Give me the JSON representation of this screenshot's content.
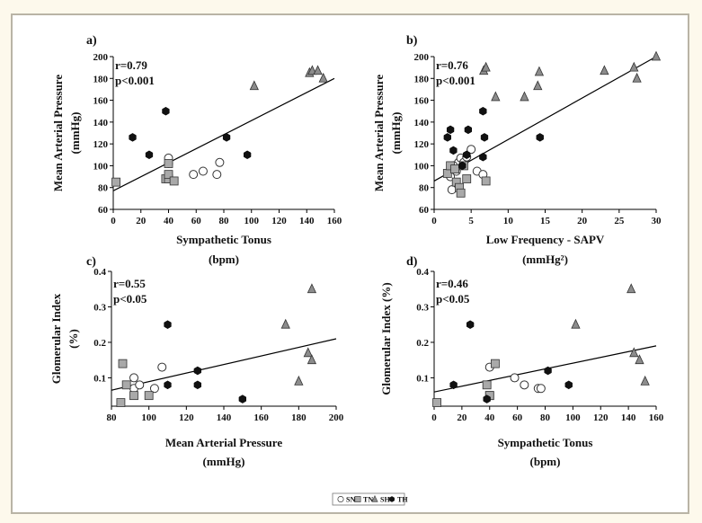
{
  "chart_data": [
    {
      "type": "scatter",
      "panel": "a)",
      "stats": [
        "r=0.79",
        "p<0.001"
      ],
      "xlabel": "Sympathetic Tonus",
      "xunit": "(bpm)",
      "ylabel": "Mean Arterial Pressure",
      "yunit": "(mmHg)",
      "xlim": [
        0,
        160
      ],
      "ylim": [
        60,
        200
      ],
      "xticks": [
        "0",
        "20",
        "40",
        "60",
        "80",
        "100",
        "120",
        "140",
        "160"
      ],
      "yticks": [
        "60",
        "80",
        "100",
        "120",
        "140",
        "160",
        "180",
        "200"
      ],
      "series": [
        {
          "name": "SN",
          "marker": "circle",
          "x": [
            40,
            58,
            65,
            75,
            77,
            40
          ],
          "y": [
            102,
            92,
            95,
            92,
            103,
            107
          ]
        },
        {
          "name": "TN",
          "marker": "square",
          "x": [
            2,
            38,
            40,
            40,
            44,
            40
          ],
          "y": [
            85,
            88,
            88,
            92,
            86,
            102
          ]
        },
        {
          "name": "SH",
          "marker": "triangle",
          "x": [
            102,
            142,
            144,
            148,
            152
          ],
          "y": [
            173,
            185,
            187,
            187,
            180
          ]
        },
        {
          "name": "TH",
          "marker": "hexagon",
          "x": [
            14,
            26,
            38,
            82,
            97
          ],
          "y": [
            126,
            110,
            150,
            126,
            110
          ]
        }
      ],
      "fit_line": {
        "x": [
          0,
          160
        ],
        "y": [
          77,
          180
        ]
      }
    },
    {
      "type": "scatter",
      "panel": "b)",
      "stats": [
        "r=0.76",
        "p<0.001"
      ],
      "xlabel": "Low Frequency - SAPV",
      "xunit": "(mmHg²)",
      "ylabel": "Mean Arterial Pressure",
      "yunit": "(mmHg)",
      "xlim": [
        0,
        30
      ],
      "ylim": [
        60,
        200
      ],
      "xticks": [
        "0",
        "5",
        "10",
        "15",
        "20",
        "25",
        "30"
      ],
      "yticks": [
        "60",
        "80",
        "100",
        "120",
        "140",
        "160",
        "180",
        "200"
      ],
      "series": [
        {
          "name": "SN",
          "marker": "circle",
          "x": [
            2.2,
            2.4,
            2.8,
            3.0,
            3.3,
            3.6,
            4.0,
            4.4,
            5.0,
            5.8,
            6.6,
            2.6
          ],
          "y": [
            90,
            78,
            100,
            95,
            103,
            107,
            103,
            108,
            115,
            95,
            92,
            100
          ]
        },
        {
          "name": "TN",
          "marker": "square",
          "x": [
            1.8,
            2.2,
            3.0,
            3.4,
            3.6,
            4.0,
            4.4,
            7.0,
            2.8
          ],
          "y": [
            93,
            100,
            85,
            80,
            75,
            100,
            88,
            86,
            97
          ]
        },
        {
          "name": "SH",
          "marker": "triangle",
          "x": [
            6.7,
            7.0,
            8.3,
            12.2,
            14.0,
            14.2,
            23.0,
            27.0,
            27.4,
            30.0
          ],
          "y": [
            187,
            190,
            163,
            163,
            173,
            186,
            187,
            190,
            180,
            200
          ]
        },
        {
          "name": "TH",
          "marker": "hexagon",
          "x": [
            1.8,
            2.2,
            2.6,
            3.8,
            4.4,
            4.6,
            6.6,
            6.6,
            6.8,
            14.3
          ],
          "y": [
            126,
            133,
            114,
            100,
            110,
            133,
            150,
            108,
            126,
            126
          ]
        }
      ],
      "fit_line": {
        "x": [
          0,
          30
        ],
        "y": [
          86,
          200
        ]
      }
    },
    {
      "type": "scatter",
      "panel": "c)",
      "stats": [
        "r=0.55",
        "p<0.05"
      ],
      "xlabel": "Mean Arterial Pressure",
      "xunit": "(mmHg)",
      "ylabel": "Glomerular Index",
      "yunit": "(%)",
      "xlim": [
        80,
        200
      ],
      "ylim": [
        0.02,
        0.4
      ],
      "xticks": [
        "80",
        "100",
        "120",
        "140",
        "160",
        "180",
        "200"
      ],
      "yticks": [
        "0.1",
        "0.2",
        "0.3",
        "0.4"
      ],
      "series": [
        {
          "name": "SN",
          "marker": "circle",
          "x": [
            92,
            92,
            95,
            103,
            107
          ],
          "y": [
            0.1,
            0.07,
            0.08,
            0.07,
            0.13
          ]
        },
        {
          "name": "TN",
          "marker": "square",
          "x": [
            85,
            86,
            88,
            92,
            100
          ],
          "y": [
            0.03,
            0.14,
            0.08,
            0.05,
            0.05
          ]
        },
        {
          "name": "SH",
          "marker": "triangle",
          "x": [
            173,
            180,
            185,
            187,
            187
          ],
          "y": [
            0.25,
            0.09,
            0.17,
            0.15,
            0.35
          ]
        },
        {
          "name": "TH",
          "marker": "hexagon",
          "x": [
            110,
            110,
            126,
            126,
            150
          ],
          "y": [
            0.25,
            0.08,
            0.12,
            0.08,
            0.04
          ]
        }
      ],
      "fit_line": {
        "x": [
          80,
          200
        ],
        "y": [
          0.065,
          0.21
        ]
      }
    },
    {
      "type": "scatter",
      "panel": "d)",
      "stats": [
        "r=0.46",
        "p<0.05"
      ],
      "xlabel": "Sympathetic Tonus",
      "xunit": "(bpm)",
      "ylabel": "Glomerular Index (%)",
      "yunit": "",
      "xlim": [
        0,
        160
      ],
      "ylim": [
        0.02,
        0.4
      ],
      "xticks": [
        "0",
        "20",
        "40",
        "60",
        "80",
        "100",
        "120",
        "140",
        "160"
      ],
      "yticks": [
        "0.1",
        "0.2",
        "0.3",
        "0.4"
      ],
      "series": [
        {
          "name": "SN",
          "marker": "circle",
          "x": [
            40,
            58,
            65,
            75,
            77
          ],
          "y": [
            0.13,
            0.1,
            0.08,
            0.07,
            0.07
          ]
        },
        {
          "name": "TN",
          "marker": "square",
          "x": [
            2,
            38,
            40,
            40,
            44
          ],
          "y": [
            0.03,
            0.08,
            0.05,
            0.05,
            0.14
          ]
        },
        {
          "name": "SH",
          "marker": "triangle",
          "x": [
            102,
            142,
            144,
            148,
            152
          ],
          "y": [
            0.25,
            0.35,
            0.17,
            0.15,
            0.09
          ]
        },
        {
          "name": "TH",
          "marker": "hexagon",
          "x": [
            14,
            26,
            38,
            82,
            97
          ],
          "y": [
            0.08,
            0.25,
            0.04,
            0.12,
            0.08
          ]
        }
      ],
      "fit_line": {
        "x": [
          0,
          160
        ],
        "y": [
          0.06,
          0.19
        ]
      }
    }
  ],
  "legend": [
    {
      "label": "SN",
      "marker": "circle"
    },
    {
      "label": "TN",
      "marker": "square"
    },
    {
      "label": "SH",
      "marker": "triangle"
    },
    {
      "label": "TH",
      "marker": "hexagon"
    }
  ],
  "colors": {
    "page_bg": "#fdf9ec",
    "border": "#b9b4a6",
    "circle_fill": "#ffffff",
    "square_fill": "#a9a9a9",
    "triangle_fill": "#8c8c8c",
    "hexagon_fill": "#111111",
    "stroke": "#333333"
  }
}
